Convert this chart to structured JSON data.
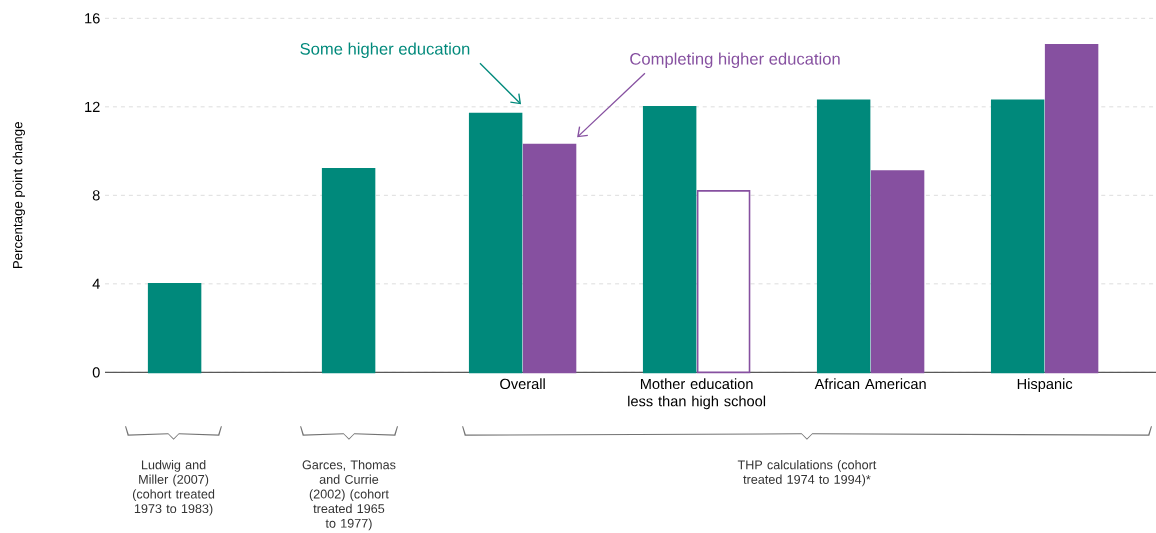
{
  "chart_data": {
    "type": "bar",
    "ylabel": "Percentage point change",
    "categories": [
      null,
      null,
      "Overall",
      "Mother education less than high school",
      "African American",
      "Hispanic"
    ],
    "series": [
      {
        "name": "Some higher education",
        "color": "#00897b",
        "values": [
          4.0,
          9.2,
          11.7,
          12.0,
          12.3,
          12.3
        ]
      },
      {
        "name": "Completing higher education",
        "color": "#8650a0",
        "colors": [
          "#8650a0",
          "#8650a0",
          "#8650a0",
          "#ffffff",
          "#8650a0",
          "#8650a0"
        ],
        "values": [
          null,
          null,
          10.3,
          8.2,
          9.1,
          14.8
        ]
      }
    ],
    "ylim": [
      0,
      16
    ],
    "yticks": [
      0,
      4,
      8,
      12,
      16
    ],
    "grid": "y",
    "legend": false,
    "annotations": [
      "Ludwig and Miller (2007) (cohort treated 1973 to 1983)",
      "Garces, Thomas and Currie (2002) (cohort treated 1965 to 1977)",
      "THP calculations (cohort treated 1974 to 1994)*"
    ]
  }
}
